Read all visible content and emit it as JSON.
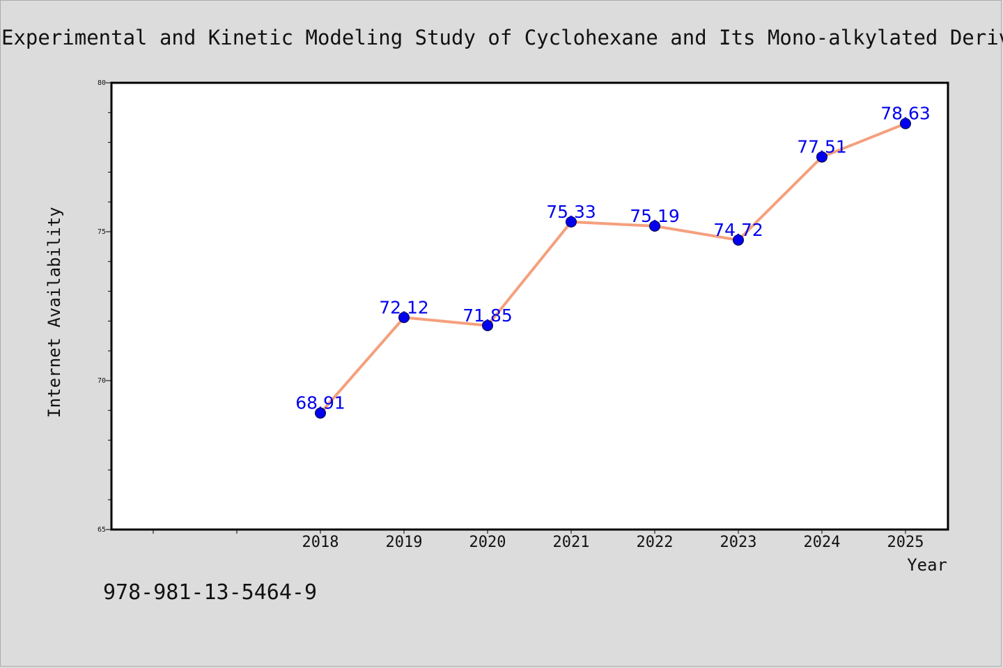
{
  "chart_data": {
    "type": "line",
    "title": "Experimental and Kinetic Modeling Study of Cyclohexane and Its Mono-alkylated Derivatives",
    "xlabel": "Year",
    "ylabel": "Internet Availability",
    "categories": [
      "2018",
      "2019",
      "2020",
      "2021",
      "2022",
      "2023",
      "2024",
      "2025"
    ],
    "series": [
      {
        "values": [
          68.91,
          72.12,
          71.85,
          75.33,
          75.19,
          74.72,
          77.51,
          78.63
        ],
        "labels": [
          "68.91",
          "72.12",
          "71.85",
          "75.33",
          "75.19",
          "74.72",
          "77.51",
          "78.63"
        ]
      }
    ],
    "ylim": [
      65,
      80
    ],
    "yticks": [
      "65",
      "70",
      "75",
      "80"
    ],
    "grid": false,
    "line_color": "#f4a07c",
    "marker_color": "#0000ee",
    "label_color": "#0000ee"
  },
  "footer": {
    "isbn": "978-981-13-5464-9"
  }
}
